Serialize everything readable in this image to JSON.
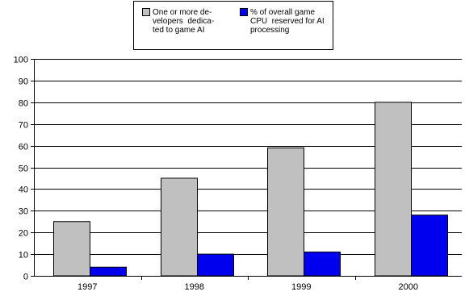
{
  "chart_data": {
    "type": "bar",
    "categories": [
      "1997",
      "1998",
      "1999",
      "2000"
    ],
    "series": [
      {
        "name_lines": [
          "One or more de-",
          "velopers  dedica-",
          "ted to game AI"
        ],
        "color": "#c0c0c0",
        "values": [
          25,
          45,
          59,
          80
        ]
      },
      {
        "name_lines": [
          "% of overall game",
          "CPU  reserved for AI",
          "processing"
        ],
        "color": "#0000ee",
        "values": [
          4,
          10,
          11,
          28
        ]
      }
    ],
    "ylim": [
      0,
      100
    ],
    "yticks": [
      "0",
      "10",
      "20",
      "30",
      "40",
      "50",
      "60",
      "70",
      "80",
      "90",
      "100"
    ],
    "grid": true,
    "legend_position": "top-center"
  }
}
